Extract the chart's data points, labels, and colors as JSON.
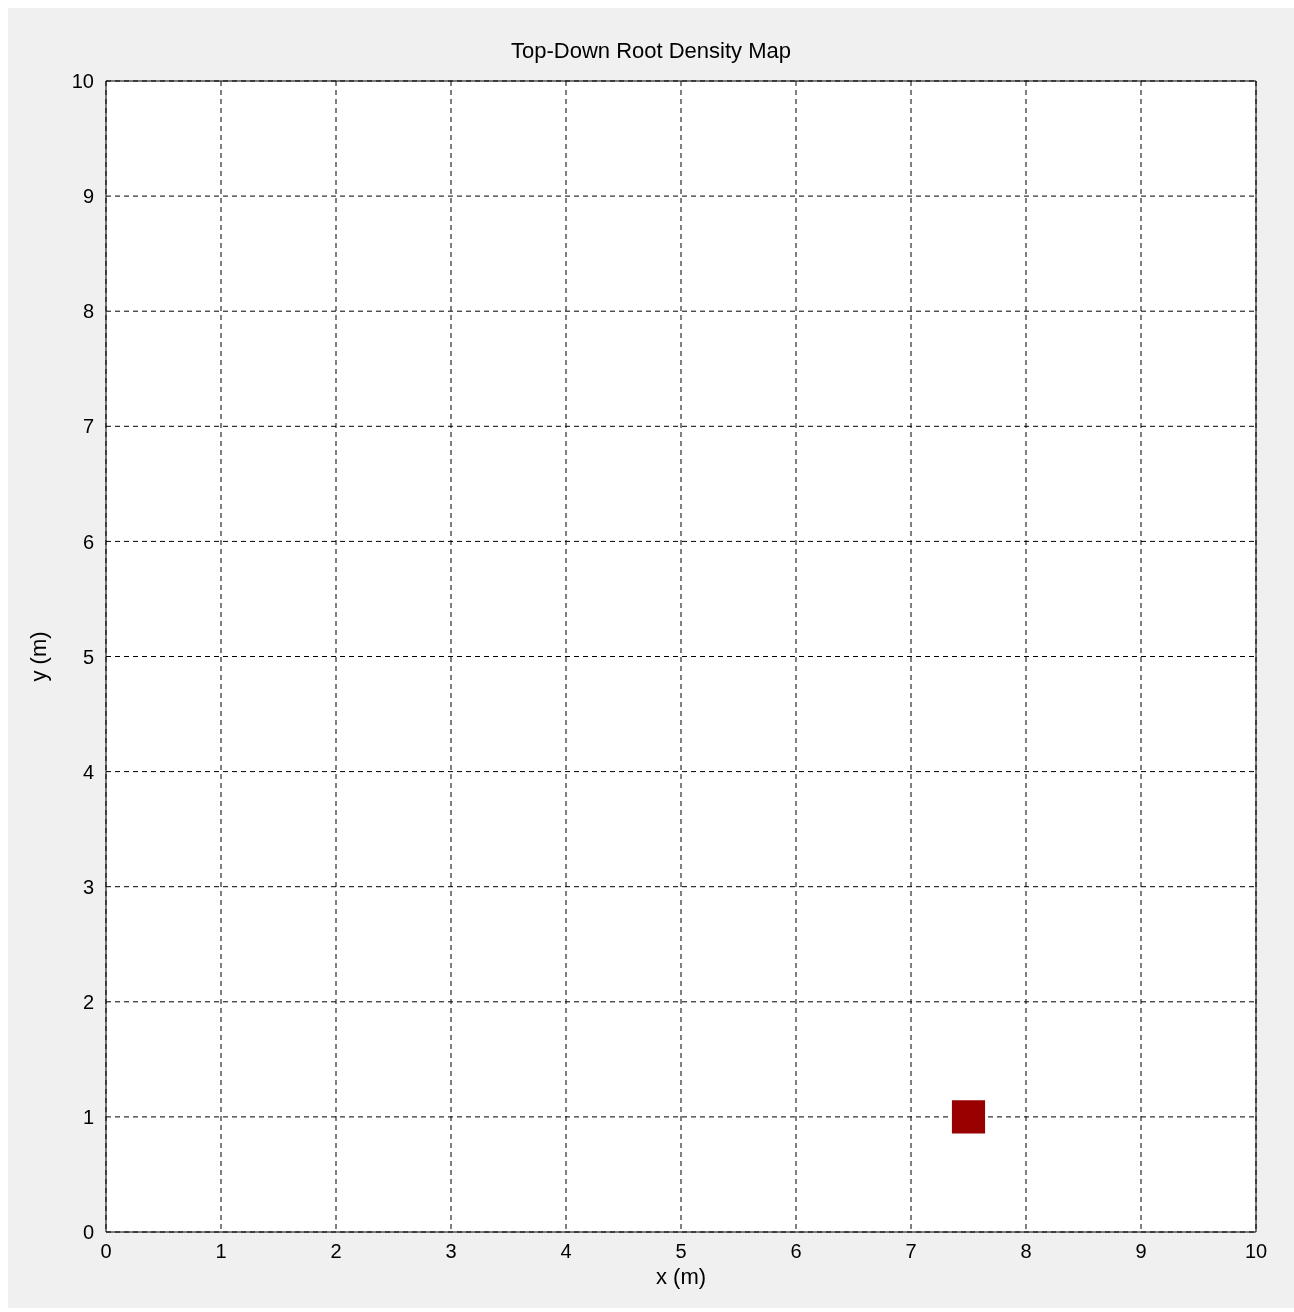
{
  "chart_data": {
    "type": "scatter",
    "title": "Top-Down Root Density Map",
    "xlabel": "x (m)",
    "ylabel": "y (m)",
    "x": [
      7.5
    ],
    "values": [
      1
    ],
    "color": "#990000",
    "marker": "square",
    "xlim": [
      0,
      10
    ],
    "xticks": [
      0,
      1,
      2,
      3,
      4,
      5,
      6,
      7,
      8,
      9,
      10
    ],
    "ylim": [
      0,
      10
    ],
    "yticks": [
      0,
      1,
      2,
      3,
      4,
      5,
      6,
      7,
      8,
      9,
      10
    ],
    "grid": true
  }
}
